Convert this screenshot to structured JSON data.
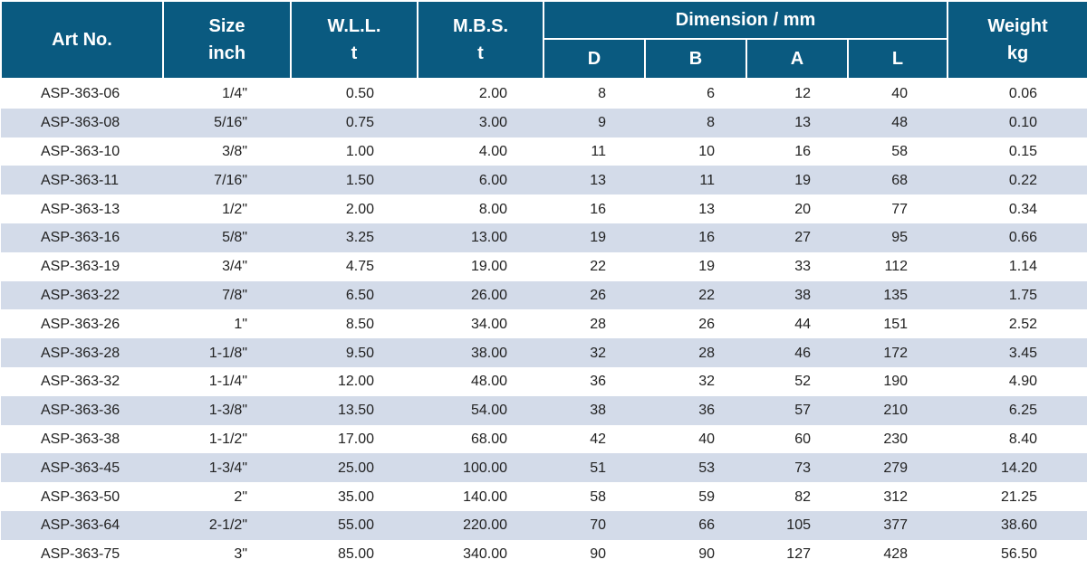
{
  "header": {
    "art_no": "Art No.",
    "size": [
      "Size",
      "inch"
    ],
    "wll": [
      "W.L.L.",
      "t"
    ],
    "mbs": [
      "M.B.S.",
      "t"
    ],
    "dimension": "Dimension / mm",
    "dim_cols": [
      "D",
      "B",
      "A",
      "L"
    ],
    "weight": [
      "Weight",
      "kg"
    ]
  },
  "rows": [
    [
      "ASP-363-06",
      "1/4\"",
      "0.50",
      "2.00",
      "8",
      "6",
      "12",
      "40",
      "0.06"
    ],
    [
      "ASP-363-08",
      "5/16\"",
      "0.75",
      "3.00",
      "9",
      "8",
      "13",
      "48",
      "0.10"
    ],
    [
      "ASP-363-10",
      "3/8\"",
      "1.00",
      "4.00",
      "11",
      "10",
      "16",
      "58",
      "0.15"
    ],
    [
      "ASP-363-11",
      "7/16\"",
      "1.50",
      "6.00",
      "13",
      "11",
      "19",
      "68",
      "0.22"
    ],
    [
      "ASP-363-13",
      "1/2\"",
      "2.00",
      "8.00",
      "16",
      "13",
      "20",
      "77",
      "0.34"
    ],
    [
      "ASP-363-16",
      "5/8\"",
      "3.25",
      "13.00",
      "19",
      "16",
      "27",
      "95",
      "0.66"
    ],
    [
      "ASP-363-19",
      "3/4\"",
      "4.75",
      "19.00",
      "22",
      "19",
      "33",
      "112",
      "1.14"
    ],
    [
      "ASP-363-22",
      "7/8\"",
      "6.50",
      "26.00",
      "26",
      "22",
      "38",
      "135",
      "1.75"
    ],
    [
      "ASP-363-26",
      "1\"",
      "8.50",
      "34.00",
      "28",
      "26",
      "44",
      "151",
      "2.52"
    ],
    [
      "ASP-363-28",
      "1-1/8\"",
      "9.50",
      "38.00",
      "32",
      "28",
      "46",
      "172",
      "3.45"
    ],
    [
      "ASP-363-32",
      "1-1/4\"",
      "12.00",
      "48.00",
      "36",
      "32",
      "52",
      "190",
      "4.90"
    ],
    [
      "ASP-363-36",
      "1-3/8\"",
      "13.50",
      "54.00",
      "38",
      "36",
      "57",
      "210",
      "6.25"
    ],
    [
      "ASP-363-38",
      "1-1/2\"",
      "17.00",
      "68.00",
      "42",
      "40",
      "60",
      "230",
      "8.40"
    ],
    [
      "ASP-363-45",
      "1-3/4\"",
      "25.00",
      "100.00",
      "51",
      "53",
      "73",
      "279",
      "14.20"
    ],
    [
      "ASP-363-50",
      "2\"",
      "35.00",
      "140.00",
      "58",
      "59",
      "82",
      "312",
      "21.25"
    ],
    [
      "ASP-363-64",
      "2-1/2\"",
      "55.00",
      "220.00",
      "70",
      "66",
      "105",
      "377",
      "38.60"
    ],
    [
      "ASP-363-75",
      "3\"",
      "85.00",
      "340.00",
      "90",
      "90",
      "127",
      "428",
      "56.50"
    ]
  ]
}
